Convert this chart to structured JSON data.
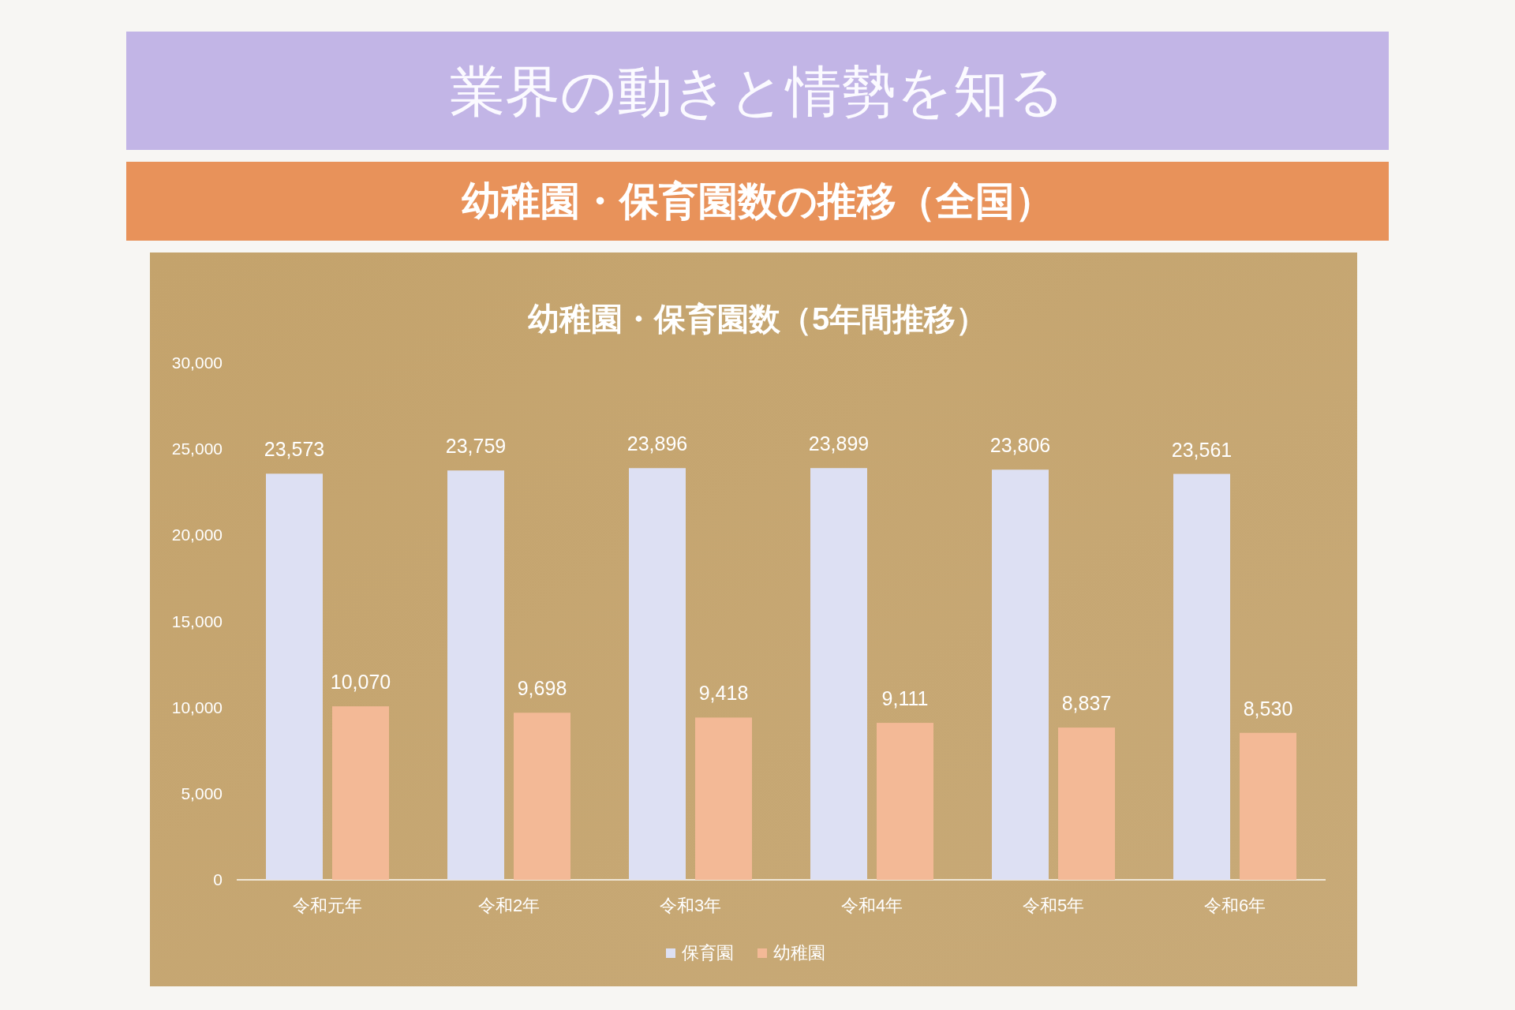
{
  "chart_data": {
    "type": "bar",
    "title": "業界の動きと情勢を知る",
    "subtitle": "幼稚園・保育園数の推移（全国）",
    "annotations": [
      "幼稚園・保育園数（5年間推移）"
    ],
    "categories": [
      "令和元年",
      "令和2年",
      "令和3年",
      "令和4年",
      "令和5年",
      "令和6年"
    ],
    "series": [
      {
        "name": "保育園",
        "color": "#dde0f3",
        "values": [
          23573,
          23759,
          23896,
          23899,
          23806,
          23561
        ],
        "value_labels": [
          "23,573",
          "23,759",
          "23,896",
          "23,899",
          "23,806",
          "23,561"
        ]
      },
      {
        "name": "幼稚園",
        "color": "#f3b996",
        "values": [
          10070,
          9698,
          9418,
          9111,
          8837,
          8530
        ],
        "value_labels": [
          "10,070",
          "9,698",
          "9,418",
          "9,111",
          "8,837",
          "8,530"
        ]
      }
    ],
    "ylim": [
      0,
      30000
    ],
    "yticks": [
      {
        "value": 0,
        "label": "0"
      },
      {
        "value": 5000,
        "label": "5,000"
      },
      {
        "value": 10000,
        "label": "10,000"
      },
      {
        "value": 15000,
        "label": "15,000"
      },
      {
        "value": 20000,
        "label": "20,000"
      },
      {
        "value": 25000,
        "label": "25,000"
      },
      {
        "value": 30000,
        "label": "30,000"
      }
    ],
    "legend": "bottom"
  }
}
